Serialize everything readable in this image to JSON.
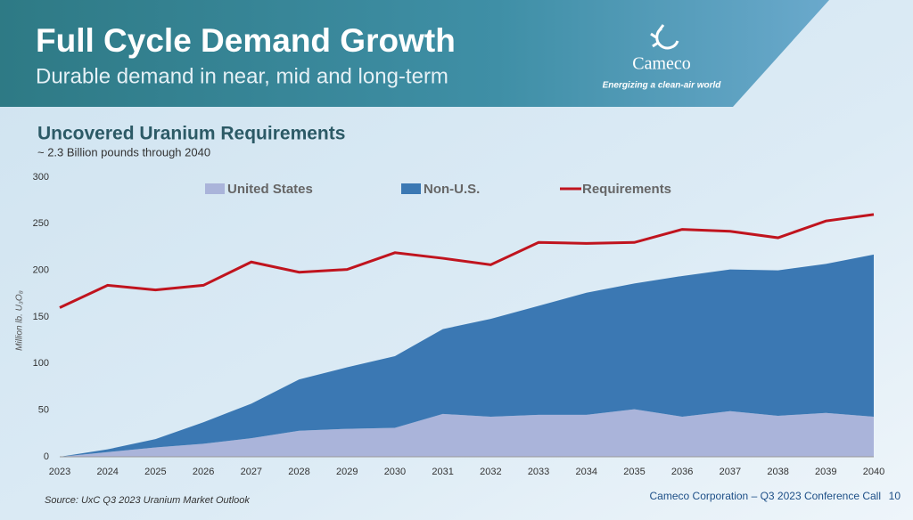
{
  "slide": {
    "title": "Full Cycle Demand Growth",
    "subtitle": "Durable demand in near, mid and long-term",
    "logo_name": "Cameco",
    "logo_tagline": "Energizing a clean-air world",
    "source": "Source: UxC Q3 2023 Uranium Market Outlook",
    "footer": "Cameco Corporation – Q3 2023 Conference Call",
    "page": "10"
  },
  "chart_data": {
    "type": "stacked_area_line",
    "title": "Uncovered Uranium Requirements",
    "subtitle": "~ 2.3 Billion pounds through 2040",
    "y_label": "Million lb. U₃O₈",
    "categories": [
      "2023",
      "2024",
      "2025",
      "2026",
      "2027",
      "2028",
      "2029",
      "2030",
      "2031",
      "2032",
      "2033",
      "2034",
      "2035",
      "2036",
      "2037",
      "2038",
      "2039",
      "2040"
    ],
    "series": [
      {
        "name": "United States",
        "kind": "area",
        "color": "#aab4da",
        "values": [
          0,
          5,
          10,
          14,
          20,
          28,
          30,
          31,
          46,
          43,
          45,
          45,
          51,
          43,
          49,
          44,
          47,
          43
        ]
      },
      {
        "name": "Non-U.S.",
        "kind": "area",
        "color": "#3b78b3",
        "values": [
          0,
          3,
          9,
          23,
          37,
          55,
          66,
          77,
          91,
          105,
          117,
          131,
          135,
          151,
          152,
          156,
          160,
          174
        ]
      },
      {
        "name": "Requirements",
        "kind": "line",
        "color": "#c0141e",
        "values": [
          160,
          184,
          179,
          184,
          209,
          198,
          201,
          219,
          213,
          206,
          230,
          229,
          230,
          244,
          242,
          235,
          253,
          260
        ]
      }
    ],
    "ylim": [
      0,
      300
    ],
    "yticks": [
      0,
      50,
      100,
      150,
      200,
      250,
      300
    ],
    "grid": false,
    "legend": "top"
  }
}
